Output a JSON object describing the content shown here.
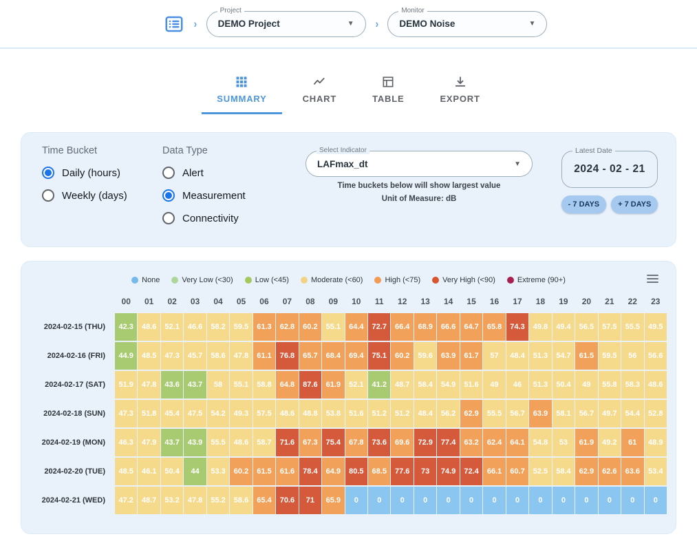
{
  "topbar": {
    "project_label": "Project",
    "project_value": "DEMO Project",
    "monitor_label": "Monitor",
    "monitor_value": "DEMO Noise"
  },
  "tabs": [
    {
      "id": "summary",
      "label": "SUMMARY",
      "icon": "grid-icon",
      "active": true
    },
    {
      "id": "chart",
      "label": "CHART",
      "icon": "line-chart-icon",
      "active": false
    },
    {
      "id": "table",
      "label": "TABLE",
      "icon": "table-icon",
      "active": false
    },
    {
      "id": "export",
      "label": "EXPORT",
      "icon": "download-icon",
      "active": false
    }
  ],
  "filters": {
    "time_bucket": {
      "label": "Time Bucket",
      "options": [
        {
          "label": "Daily (hours)",
          "selected": true
        },
        {
          "label": "Weekly (days)",
          "selected": false
        }
      ]
    },
    "data_type": {
      "label": "Data Type",
      "options": [
        {
          "label": "Alert",
          "selected": false
        },
        {
          "label": "Measurement",
          "selected": true
        },
        {
          "label": "Connectivity",
          "selected": false
        }
      ]
    },
    "indicator": {
      "label": "Select Indicator",
      "value": "LAFmax_dt",
      "note1": "Time buckets below will show largest value",
      "note2": "Unit of Measure: dB"
    },
    "latest_date": {
      "label": "Latest Date",
      "value": "2024 - 02 - 21",
      "minus_button": "- 7 DAYS",
      "plus_button": "+ 7 DAYS"
    }
  },
  "chart_data": {
    "type": "heatmap",
    "unit": "dB",
    "legend": [
      {
        "key": "none",
        "label": "None",
        "color": "#74B9EA"
      },
      {
        "key": "very_low",
        "label": "Very Low (<30)",
        "color": "#AED69B"
      },
      {
        "key": "low",
        "label": "Low (<45)",
        "color": "#A4C75E"
      },
      {
        "key": "moderate",
        "label": "Moderate (<60)",
        "color": "#F2D385"
      },
      {
        "key": "high",
        "label": "High (<75)",
        "color": "#F09A52"
      },
      {
        "key": "very_high",
        "label": "Very High (<90)",
        "color": "#D7552F"
      },
      {
        "key": "extreme",
        "label": "Extreme (90+)",
        "color": "#A82050"
      }
    ],
    "cell_colors": {
      "none": "#8AC6F0",
      "very_low": "#B7D99E",
      "low": "#A8CB72",
      "moderate": "#F5DA8C",
      "high": "#F1A159",
      "very_high": "#D55A3B",
      "extreme": "#A82050"
    },
    "columns": [
      "00",
      "01",
      "02",
      "03",
      "04",
      "05",
      "06",
      "07",
      "08",
      "09",
      "10",
      "11",
      "12",
      "13",
      "14",
      "15",
      "16",
      "17",
      "18",
      "19",
      "20",
      "21",
      "22",
      "23"
    ],
    "rows": [
      {
        "label": "2024-02-15 (THU)",
        "values": [
          42.3,
          48.6,
          52.1,
          46.6,
          58.2,
          59.5,
          61.3,
          62.8,
          60.2,
          55.1,
          64.4,
          72.7,
          66.4,
          68.9,
          66.6,
          64.7,
          65.8,
          74.3,
          49.8,
          49.4,
          56.5,
          57.5,
          55.5,
          49.5
        ]
      },
      {
        "label": "2024-02-16 (FRI)",
        "values": [
          44.9,
          48.5,
          47.3,
          45.7,
          58.6,
          47.8,
          61.1,
          76.8,
          65.7,
          68.4,
          69.4,
          75.1,
          60.2,
          59.6,
          63.9,
          61.7,
          57,
          48.4,
          51.3,
          54.7,
          61.5,
          59.5,
          56,
          56.6
        ]
      },
      {
        "label": "2024-02-17 (SAT)",
        "values": [
          51.9,
          47.8,
          43.6,
          43.7,
          58,
          55.1,
          58.8,
          64.8,
          87.6,
          61.9,
          52.1,
          41.2,
          48.7,
          58.4,
          54.9,
          51.6,
          49,
          46,
          51.3,
          50.4,
          49,
          55.8,
          58.3,
          48.6
        ]
      },
      {
        "label": "2024-02-18 (SUN)",
        "values": [
          47.3,
          51.8,
          45.4,
          47.5,
          54.2,
          49.3,
          57.5,
          48.6,
          48.8,
          53.8,
          51.6,
          51.2,
          51.2,
          48.4,
          56.2,
          62.9,
          55.5,
          56.7,
          63.9,
          58.1,
          56.7,
          49.7,
          54.4,
          52.8
        ]
      },
      {
        "label": "2024-02-19 (MON)",
        "values": [
          46.3,
          47.9,
          43.7,
          43.9,
          55.5,
          48.6,
          58.7,
          71.6,
          67.3,
          75.4,
          67.8,
          73.6,
          69.6,
          72.9,
          77.4,
          63.2,
          62.4,
          64.1,
          54.8,
          53,
          61.9,
          49.2,
          61,
          48.9
        ]
      },
      {
        "label": "2024-02-20 (TUE)",
        "values": [
          48.5,
          46.1,
          50.4,
          44,
          53.3,
          60.2,
          61.5,
          61.6,
          78.4,
          64.9,
          80.5,
          68.5,
          77.6,
          73,
          74.9,
          72.4,
          66.1,
          60.7,
          52.5,
          58.4,
          62.9,
          62.6,
          63.6,
          53.4
        ]
      },
      {
        "label": "2024-02-21 (WED)",
        "values": [
          47.2,
          48.7,
          53.2,
          47.8,
          55.2,
          58.6,
          65.4,
          70.6,
          71,
          65.9,
          0,
          0,
          0,
          0,
          0,
          0,
          0,
          0,
          0,
          0,
          0,
          0,
          0,
          0
        ]
      }
    ]
  }
}
